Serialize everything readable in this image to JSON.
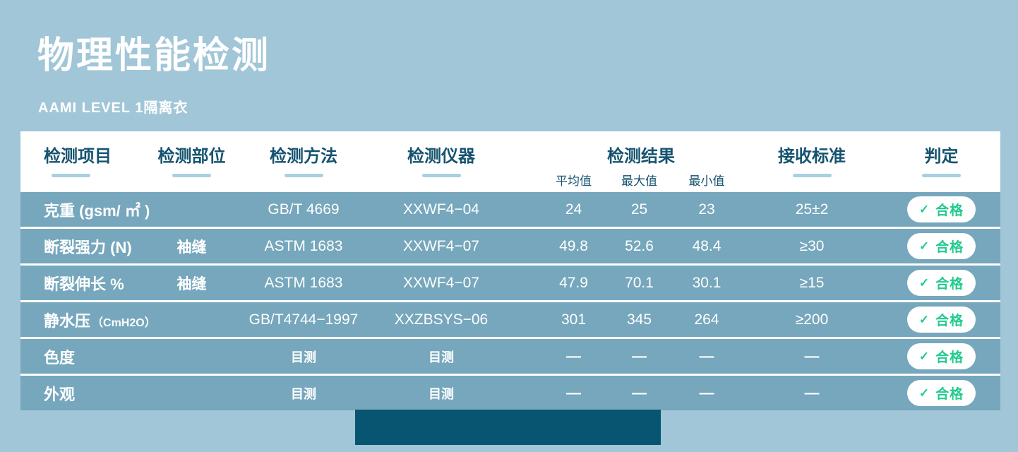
{
  "header": {
    "title": "物理性能检测",
    "subtitle": "AAMI LEVEL 1隔离衣"
  },
  "table": {
    "columns": {
      "item": "检测项目",
      "part": "检测部位",
      "method": "检测方法",
      "instrument": "检测仪器",
      "result": "检测结果",
      "result_avg": "平均值",
      "result_max": "最大值",
      "result_min": "最小值",
      "standard": "接收标准",
      "verdict": "判定"
    },
    "check_icon": "✓",
    "rows": [
      {
        "item": "克重 (gsm/ ㎡ )",
        "item_sub": "",
        "part": "",
        "method": "GB/T 4669",
        "instrument": "XXWF4−04",
        "avg": "24",
        "max": "25",
        "min": "23",
        "standard": "25±2",
        "verdict": "合格",
        "small": false
      },
      {
        "item": "断裂强力 (N)",
        "item_sub": "",
        "part": "袖缝",
        "method": "ASTM 1683",
        "instrument": "XXWF4−07",
        "avg": "49.8",
        "max": "52.6",
        "min": "48.4",
        "standard": "≥30",
        "verdict": "合格",
        "small": false
      },
      {
        "item": "断裂伸长 %",
        "item_sub": "",
        "part": "袖缝",
        "method": "ASTM 1683",
        "instrument": "XXWF4−07",
        "avg": "47.9",
        "max": "70.1",
        "min": "30.1",
        "standard": "≥15",
        "verdict": "合格",
        "small": false
      },
      {
        "item": "静水压",
        "item_sub": "（CmH2O）",
        "part": "",
        "method": "GB/T4744−1997",
        "instrument": "XXZBSYS−06",
        "avg": "301",
        "max": "345",
        "min": "264",
        "standard": "≥200",
        "verdict": "合格",
        "small": false
      },
      {
        "item": "色度",
        "item_sub": "",
        "part": "",
        "method": "目测",
        "instrument": "目测",
        "avg": "—",
        "max": "—",
        "min": "—",
        "standard": "—",
        "verdict": "合格",
        "small": true
      },
      {
        "item": "外观",
        "item_sub": "",
        "part": "",
        "method": "目测",
        "instrument": "目测",
        "avg": "—",
        "max": "—",
        "min": "—",
        "standard": "—",
        "verdict": "合格",
        "small": true
      }
    ]
  },
  "colors": {
    "page_bg": "#a1c6d8",
    "row_bg": "#76a7bc",
    "header_panel": "#ffffff",
    "header_text": "#16536f",
    "underline": "#a9cfe2",
    "pass_green": "#21cb8d",
    "footer_bar": "#075571"
  }
}
